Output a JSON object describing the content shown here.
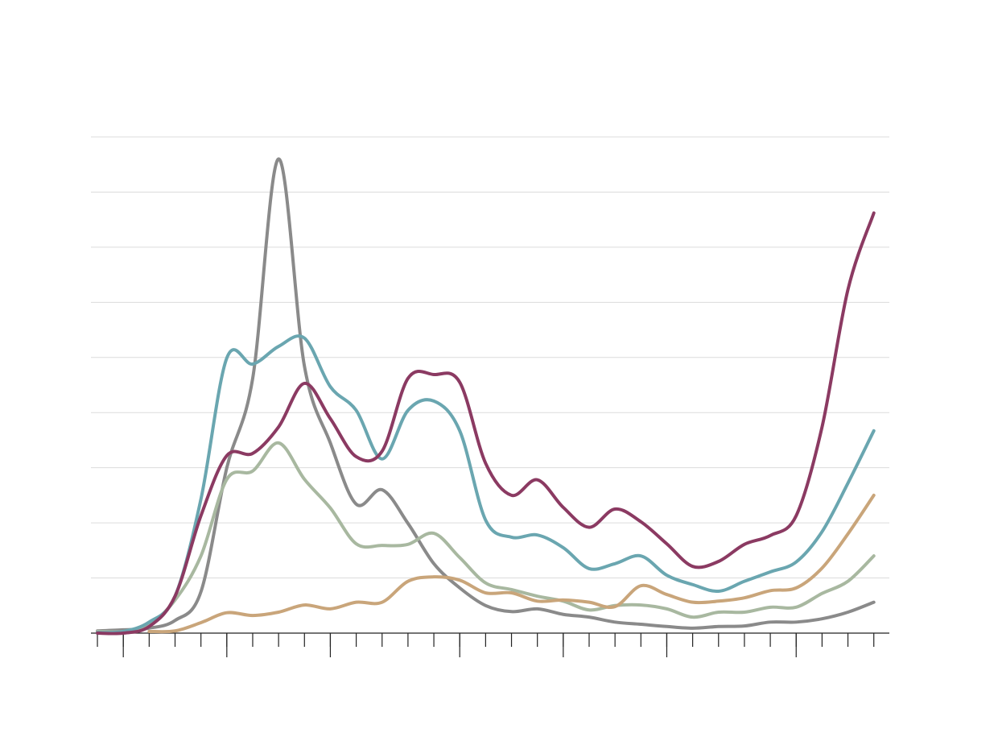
{
  "chart_data": {
    "type": "line",
    "x": [
      0,
      1,
      2,
      3,
      4,
      5,
      6,
      7,
      8,
      9,
      10,
      11,
      12,
      13,
      14,
      15,
      16,
      17,
      18,
      19,
      20,
      21,
      22,
      23,
      24,
      25,
      26,
      27,
      28,
      29,
      30
    ],
    "xlim": [
      -0.25,
      30.6
    ],
    "xticks": [
      0,
      1,
      2,
      3,
      4,
      5,
      6,
      7,
      8,
      9,
      10,
      11,
      12,
      13,
      14,
      15,
      16,
      17,
      18,
      19,
      20,
      21,
      22,
      23,
      24,
      25,
      26,
      27,
      28,
      29,
      30
    ],
    "xticks_major": [
      1,
      5,
      9,
      14,
      18,
      22,
      27
    ],
    "ylim": [
      0,
      9
    ],
    "yticks": [
      0,
      1,
      2,
      3,
      4,
      5,
      6,
      7,
      8,
      9
    ],
    "grid": true,
    "series": [
      {
        "color": "#8a8a8a",
        "values": [
          0.04,
          0.06,
          0.09,
          0.23,
          0.75,
          3.0,
          4.62,
          8.6,
          4.84,
          3.45,
          2.34,
          2.6,
          1.99,
          1.26,
          0.82,
          0.5,
          0.39,
          0.44,
          0.34,
          0.29,
          0.2,
          0.16,
          0.12,
          0.09,
          0.12,
          0.13,
          0.2,
          0.2,
          0.26,
          0.38,
          0.56
        ]
      },
      {
        "color": "#a8b8a0",
        "values": [
          0.03,
          0.03,
          0.16,
          0.6,
          1.4,
          2.79,
          2.94,
          3.45,
          2.79,
          2.27,
          1.62,
          1.59,
          1.61,
          1.81,
          1.37,
          0.91,
          0.79,
          0.67,
          0.58,
          0.42,
          0.5,
          0.51,
          0.44,
          0.29,
          0.38,
          0.38,
          0.47,
          0.47,
          0.72,
          0.94,
          1.4
        ]
      },
      {
        "color": "#c9a57a",
        "values": [
          null,
          null,
          0.03,
          0.04,
          0.19,
          0.37,
          0.32,
          0.38,
          0.51,
          0.44,
          0.56,
          0.56,
          0.94,
          1.02,
          0.96,
          0.73,
          0.73,
          0.58,
          0.6,
          0.56,
          0.48,
          0.86,
          0.7,
          0.56,
          0.58,
          0.64,
          0.77,
          0.82,
          1.18,
          1.8,
          2.5
        ]
      },
      {
        "color": "#6aa6b0",
        "values": [
          0.01,
          0.03,
          0.2,
          0.67,
          2.43,
          4.99,
          4.88,
          5.2,
          5.35,
          4.47,
          4.04,
          3.16,
          4.04,
          4.21,
          3.67,
          2.05,
          1.74,
          1.78,
          1.55,
          1.17,
          1.26,
          1.4,
          1.05,
          0.88,
          0.76,
          0.94,
          1.11,
          1.29,
          1.84,
          2.72,
          3.67
        ]
      },
      {
        "color": "#8b3a62",
        "values": [
          0,
          0,
          0.12,
          0.67,
          2.13,
          3.22,
          3.26,
          3.74,
          4.53,
          3.89,
          3.2,
          3.3,
          4.62,
          4.69,
          4.55,
          3.08,
          2.5,
          2.78,
          2.28,
          1.92,
          2.25,
          2.02,
          1.62,
          1.21,
          1.3,
          1.61,
          1.77,
          2.13,
          3.74,
          6.23,
          7.62
        ]
      }
    ]
  }
}
